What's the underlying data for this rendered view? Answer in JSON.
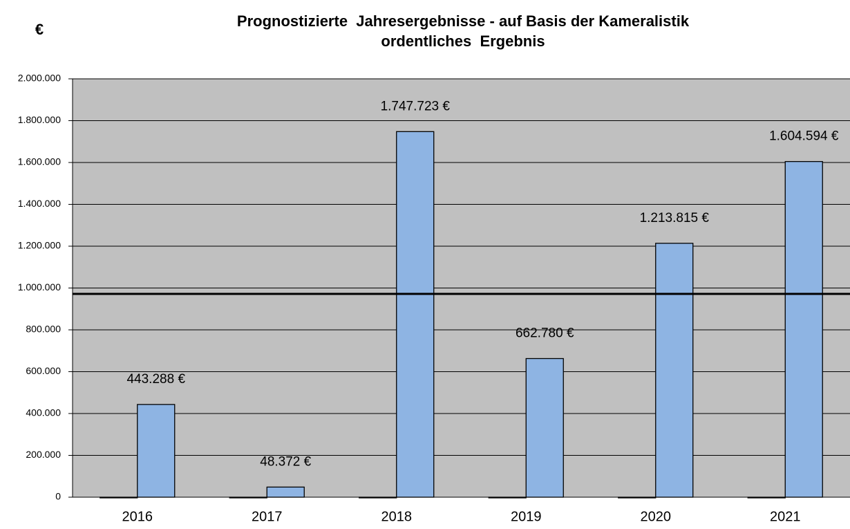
{
  "chart_data": {
    "type": "bar",
    "title": "Prognostizierte  Jahresergebnisse - auf Basis der Kameralistik",
    "subtitle": "ordentliches  Ergebnis",
    "ylabel": "€",
    "categories": [
      "2016",
      "2017",
      "2018",
      "2019",
      "2020",
      "2021"
    ],
    "series": [
      {
        "color": "#7f7f7f",
        "values": [
          0,
          0,
          0,
          0,
          0,
          0
        ]
      },
      {
        "color": "#8eb4e3",
        "values": [
          443288,
          48372,
          1747723,
          662780,
          1213815,
          1604594
        ],
        "value_labels": [
          "443.288 €",
          "48.372 €",
          "1.747.723 €",
          "662.780 €",
          "1.213.815 €",
          "1.604.594 €"
        ]
      }
    ],
    "reference_line": 972000,
    "ylim": [
      0,
      2000000
    ],
    "yticks": [
      0,
      {
        "value": 200000,
        "label": "200.000"
      },
      {
        "value": 400000,
        "label": "400.000"
      },
      {
        "value": 600000,
        "label": "600.000"
      },
      {
        "value": 800000,
        "label": "800.000"
      },
      {
        "value": 1000000,
        "label": "1.000.000"
      },
      {
        "value": 1200000,
        "label": "1.200.000"
      },
      {
        "value": 1400000,
        "label": "1.400.000"
      },
      {
        "value": 1600000,
        "label": "1.600.000"
      },
      {
        "value": 1800000,
        "label": "1.800.000"
      },
      {
        "value": 2000000,
        "label": "2.000.000"
      }
    ],
    "grid": true,
    "background": "#c0c0c0"
  }
}
